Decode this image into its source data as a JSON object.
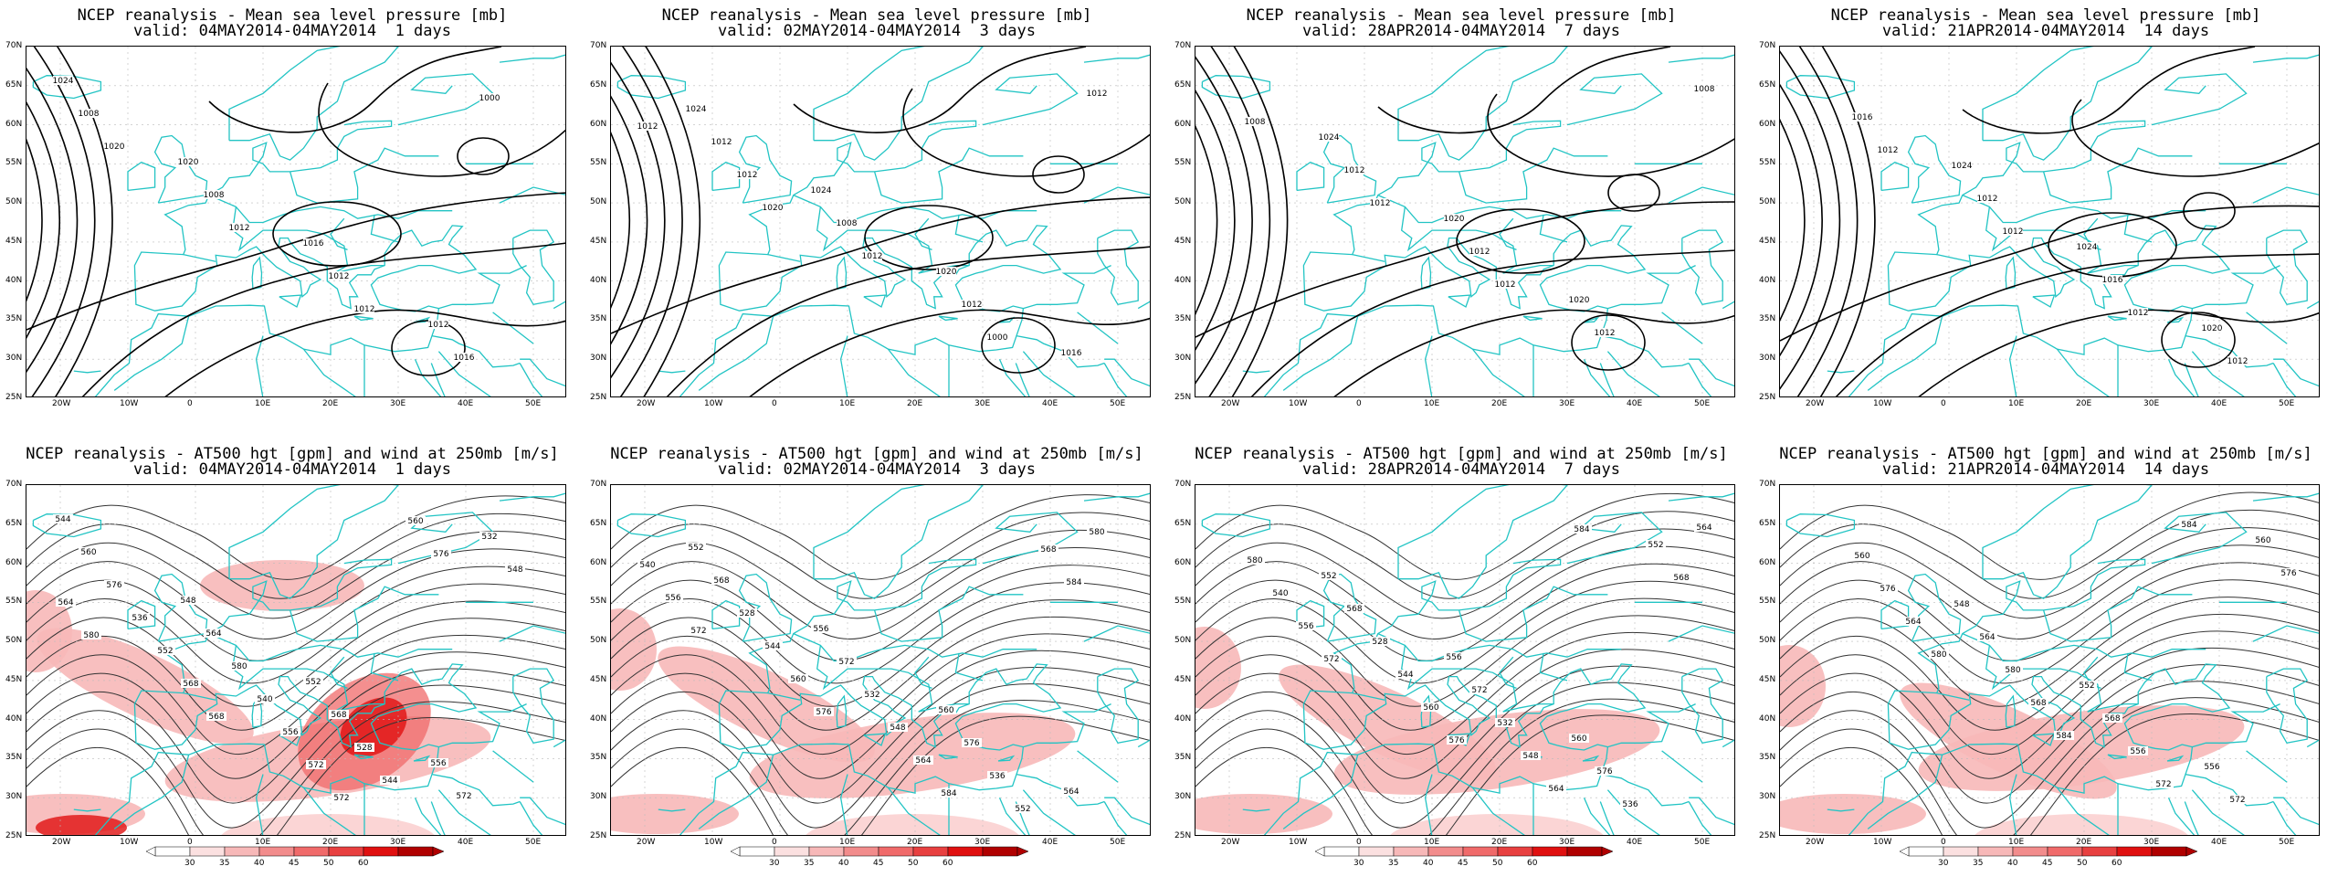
{
  "panels": [
    {
      "row": 0,
      "col": 0,
      "title1": "NCEP reanalysis - Mean sea level pressure [mb]",
      "title2": "valid: 04MAY2014-04MAY2014  1 days",
      "kind": "mslp",
      "labels": [
        "1024",
        "1020",
        "1016",
        "1012",
        "1008",
        "1008",
        "1012",
        "1016",
        "1020",
        "1012",
        "1012",
        "1000"
      ]
    },
    {
      "row": 0,
      "col": 1,
      "title1": "NCEP reanalysis - Mean sea level pressure [mb]",
      "title2": "valid: 02MAY2014-04MAY2014  3 days",
      "kind": "mslp",
      "labels": [
        "1024",
        "1024",
        "1020",
        "1016",
        "1012",
        "1008",
        "1012",
        "1012",
        "1012",
        "1012",
        "1000",
        "1012",
        "1020"
      ]
    },
    {
      "row": 0,
      "col": 2,
      "title1": "NCEP reanalysis - Mean sea level pressure [mb]",
      "title2": "valid: 28APR2014-04MAY2014  7 days",
      "kind": "mslp",
      "labels": [
        "1024",
        "1020",
        "1020",
        "1008",
        "1012",
        "1012",
        "1012",
        "1008",
        "1012",
        "1012"
      ]
    },
    {
      "row": 0,
      "col": 3,
      "title1": "NCEP reanalysis - Mean sea level pressure [mb]",
      "title2": "valid: 21APR2014-04MAY2014  14 days",
      "kind": "mslp",
      "labels": [
        "1024",
        "1024",
        "1020",
        "1016",
        "1012",
        "1016",
        "1012",
        "1012",
        "1012",
        "1012"
      ]
    },
    {
      "row": 1,
      "col": 0,
      "title1": "NCEP reanalysis - AT500 hgt [gpm] and wind at 250mb [m/s]",
      "title2": "valid: 04MAY2014-04MAY2014  1 days",
      "kind": "z500",
      "labels": [
        "544",
        "548",
        "552",
        "556",
        "560",
        "564",
        "568",
        "572",
        "576",
        "580",
        "528",
        "532",
        "536",
        "540",
        "544",
        "548",
        "552",
        "556",
        "560",
        "564",
        "568",
        "572",
        "576",
        "580",
        "568",
        "572"
      ]
    },
    {
      "row": 1,
      "col": 1,
      "title1": "NCEP reanalysis - AT500 hgt [gpm] and wind at 250mb [m/s]",
      "title2": "valid: 02MAY2014-04MAY2014  3 days",
      "kind": "z500",
      "labels": [
        "552",
        "556",
        "560",
        "564",
        "568",
        "572",
        "576",
        "580",
        "528",
        "532",
        "536",
        "540",
        "544",
        "548",
        "552",
        "556",
        "560",
        "564",
        "568",
        "572",
        "576",
        "584",
        "584"
      ]
    },
    {
      "row": 1,
      "col": 2,
      "title1": "NCEP reanalysis - AT500 hgt [gpm] and wind at 250mb [m/s]",
      "title2": "valid: 28APR2014-04MAY2014  7 days",
      "kind": "z500",
      "labels": [
        "552",
        "556",
        "560",
        "564",
        "568",
        "572",
        "576",
        "580",
        "528",
        "532",
        "536",
        "540",
        "544",
        "548",
        "552",
        "556",
        "560",
        "564",
        "568",
        "572",
        "576",
        "584"
      ]
    },
    {
      "row": 1,
      "col": 3,
      "title1": "NCEP reanalysis - AT500 hgt [gpm] and wind at 250mb [m/s]",
      "title2": "valid: 21APR2014-04MAY2014  14 days",
      "kind": "z500",
      "labels": [
        "548",
        "552",
        "556",
        "560",
        "564",
        "568",
        "572",
        "576",
        "580",
        "556",
        "560",
        "564",
        "568",
        "572",
        "576",
        "580",
        "584",
        "584"
      ]
    }
  ],
  "axes": {
    "lat_labels": [
      "70N",
      "65N",
      "60N",
      "55N",
      "50N",
      "45N",
      "40N",
      "35N",
      "30N",
      "25N"
    ],
    "lon_labels": [
      "20W",
      "10W",
      "0",
      "10E",
      "20E",
      "30E",
      "40E",
      "50E"
    ]
  },
  "colorbar": {
    "labels": [
      "30",
      "35",
      "40",
      "45",
      "50",
      "60"
    ]
  },
  "colors": {
    "coast": "#22c4c4",
    "contour": "#000000",
    "jet_light": "#f7b8b8",
    "jet_mid": "#f06a6a",
    "jet_dark": "#e01010"
  }
}
